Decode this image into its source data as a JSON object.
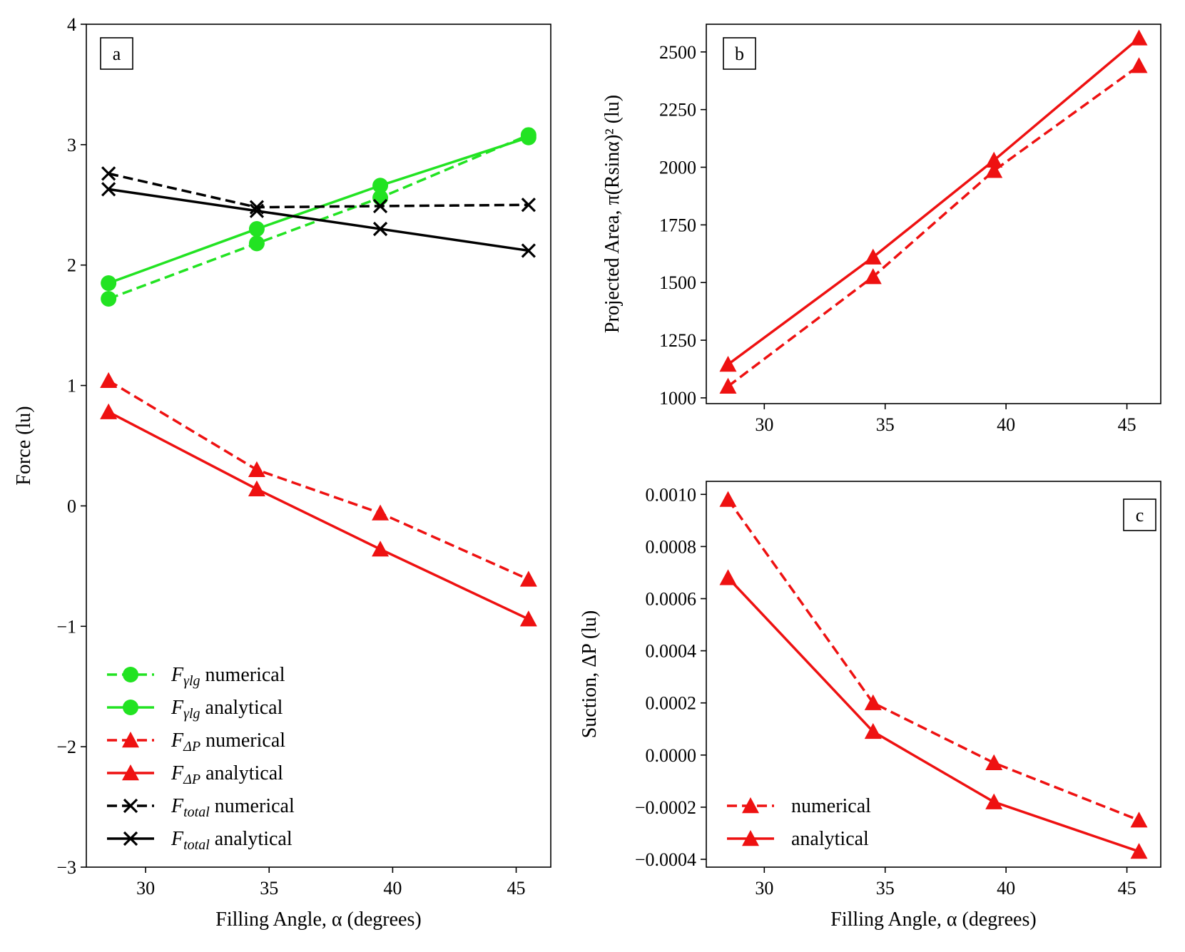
{
  "figure": {
    "panels": [
      "a",
      "b",
      "c"
    ]
  },
  "chart_data": [
    {
      "id": "a",
      "type": "line",
      "panel_label": "a",
      "xlabel": "Filling Angle, α (degrees)",
      "ylabel": "Force (lu)",
      "xlim": [
        27.6,
        46.4
      ],
      "ylim": [
        -3,
        4
      ],
      "xticks": [
        30,
        35,
        40,
        45
      ],
      "yticks": [
        -3,
        -2,
        -1,
        0,
        1,
        2,
        3,
        4
      ],
      "ytick_labels": [
        "−3",
        "−2",
        "−1",
        "0",
        "1",
        "2",
        "3",
        "4"
      ],
      "x": [
        28.5,
        34.5,
        39.5,
        45.5
      ],
      "legend_position": "lower-left",
      "series": [
        {
          "name": "F_γlg numerical",
          "legend_math": "F",
          "legend_sub": "γlg",
          "legend_rest": "numerical",
          "values": [
            1.72,
            2.18,
            2.56,
            3.08
          ],
          "color": "#22e322",
          "dash": "dashed",
          "marker": "circle"
        },
        {
          "name": "F_γlg analytical",
          "legend_math": "F",
          "legend_sub": "γlg",
          "legend_rest": "analytical",
          "values": [
            1.85,
            2.3,
            2.66,
            3.06
          ],
          "color": "#22e322",
          "dash": "solid",
          "marker": "circle"
        },
        {
          "name": "F_ΔP numerical",
          "legend_math": "F",
          "legend_sub": "ΔP",
          "legend_rest": "numerical",
          "values": [
            1.04,
            0.3,
            -0.06,
            -0.61
          ],
          "color": "#ee1111",
          "dash": "dashed",
          "marker": "triangle"
        },
        {
          "name": "F_ΔP analytical",
          "legend_math": "F",
          "legend_sub": "ΔP",
          "legend_rest": "analytical",
          "values": [
            0.78,
            0.14,
            -0.36,
            -0.94
          ],
          "color": "#ee1111",
          "dash": "solid",
          "marker": "triangle"
        },
        {
          "name": "F_total numerical",
          "legend_math": "F",
          "legend_sub": "total",
          "legend_rest": "numerical",
          "values": [
            2.76,
            2.48,
            2.49,
            2.5
          ],
          "color": "#000000",
          "dash": "dashed",
          "marker": "x"
        },
        {
          "name": "F_total analytical",
          "legend_math": "F",
          "legend_sub": "total",
          "legend_rest": "analytical",
          "values": [
            2.63,
            2.45,
            2.3,
            2.12
          ],
          "color": "#000000",
          "dash": "solid",
          "marker": "x"
        }
      ]
    },
    {
      "id": "b",
      "type": "line",
      "panel_label": "b",
      "xlabel": "",
      "ylabel": "Projected Area, π(Rsinα)² (lu)",
      "xlim": [
        27.6,
        46.4
      ],
      "ylim": [
        975,
        2620
      ],
      "xticks": [
        30,
        35,
        40,
        45
      ],
      "yticks": [
        1000,
        1250,
        1500,
        1750,
        2000,
        2250,
        2500
      ],
      "ytick_labels": [
        "1000",
        "1250",
        "1500",
        "1750",
        "2000",
        "2250",
        "2500"
      ],
      "x": [
        28.5,
        34.5,
        39.5,
        45.5
      ],
      "legend_position": "none",
      "series": [
        {
          "name": "numerical",
          "values": [
            1050,
            1525,
            1985,
            2440
          ],
          "color": "#ee1111",
          "dash": "dashed",
          "marker": "triangle"
        },
        {
          "name": "analytical",
          "values": [
            1145,
            1610,
            2030,
            2560
          ],
          "color": "#ee1111",
          "dash": "solid",
          "marker": "triangle"
        }
      ]
    },
    {
      "id": "c",
      "type": "line",
      "panel_label": "c",
      "xlabel": "Filling Angle, α (degrees)",
      "ylabel": "Suction, ΔP (lu)",
      "xlim": [
        27.6,
        46.4
      ],
      "ylim": [
        -0.00043,
        0.00105
      ],
      "xticks": [
        30,
        35,
        40,
        45
      ],
      "yticks": [
        -0.0004,
        -0.0002,
        0,
        0.0002,
        0.0004,
        0.0006,
        0.0008,
        0.001
      ],
      "ytick_labels": [
        "−0.0004",
        "−0.0002",
        "0.0000",
        "0.0002",
        "0.0004",
        "0.0006",
        "0.0008",
        "0.0010"
      ],
      "x": [
        28.5,
        34.5,
        39.5,
        45.5
      ],
      "legend_position": "lower-left",
      "series": [
        {
          "name": "numerical",
          "legend_rest": "numerical",
          "values": [
            0.00098,
            0.0002,
            -3e-05,
            -0.00025
          ],
          "color": "#ee1111",
          "dash": "dashed",
          "marker": "triangle"
        },
        {
          "name": "analytical",
          "legend_rest": "analytical",
          "values": [
            0.00068,
            9e-05,
            -0.00018,
            -0.00037
          ],
          "color": "#ee1111",
          "dash": "solid",
          "marker": "triangle"
        }
      ]
    }
  ]
}
